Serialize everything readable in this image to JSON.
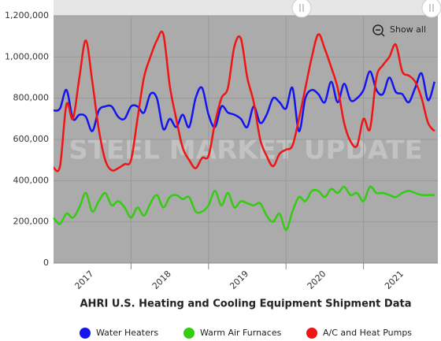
{
  "chart_data": {
    "type": "line",
    "title": "AHRI U.S. Heating and Cooling Equipment Shipment Data",
    "watermark": "STEEL MARKET UPDATE",
    "show_all": "Show all",
    "categories": [
      null,
      null,
      null,
      null,
      null,
      null,
      "2017",
      null,
      null,
      null,
      null,
      null,
      null,
      null,
      null,
      null,
      null,
      null,
      "2018",
      null,
      null,
      null,
      null,
      null,
      null,
      null,
      null,
      null,
      null,
      null,
      "2019",
      null,
      null,
      null,
      null,
      null,
      null,
      null,
      null,
      null,
      null,
      null,
      "2020",
      null,
      null,
      null,
      null,
      null,
      null,
      null,
      null,
      null,
      null,
      null,
      "2021",
      null,
      null,
      null,
      null,
      null
    ],
    "ylim": [
      0,
      1200000
    ],
    "yticks": [
      0,
      {
        "value": 200000,
        "label": "200,000"
      },
      {
        "value": 400000,
        "label": "400,000"
      },
      {
        "value": 600000,
        "label": "600,000"
      },
      {
        "value": 800000,
        "label": "800,000"
      },
      {
        "value": 1000000,
        "label": "1,000,000"
      },
      {
        "value": 1200000,
        "label": "1,200,000"
      }
    ],
    "grid": true,
    "legend": "bottom",
    "series": [
      {
        "name": "Water Heaters",
        "color": "#1414f0",
        "values": [
          740000,
          750000,
          840000,
          700000,
          720000,
          710000,
          640000,
          740000,
          760000,
          760000,
          710000,
          700000,
          760000,
          760000,
          730000,
          820000,
          800000,
          650000,
          700000,
          660000,
          720000,
          660000,
          800000,
          850000,
          720000,
          660000,
          760000,
          730000,
          720000,
          700000,
          660000,
          760000,
          680000,
          720000,
          800000,
          780000,
          750000,
          850000,
          640000,
          800000,
          840000,
          820000,
          780000,
          880000,
          780000,
          870000,
          790000,
          800000,
          840000,
          930000,
          840000,
          820000,
          900000,
          830000,
          820000,
          780000,
          850000,
          920000,
          790000,
          880000
        ]
      },
      {
        "name": "Warm Air Furnaces",
        "color": "#33cc11",
        "values": [
          220000,
          190000,
          240000,
          220000,
          270000,
          340000,
          250000,
          300000,
          340000,
          280000,
          300000,
          270000,
          220000,
          270000,
          230000,
          290000,
          330000,
          270000,
          320000,
          330000,
          310000,
          320000,
          250000,
          250000,
          280000,
          350000,
          280000,
          340000,
          270000,
          300000,
          290000,
          280000,
          290000,
          230000,
          200000,
          240000,
          160000,
          250000,
          320000,
          300000,
          350000,
          350000,
          320000,
          360000,
          340000,
          370000,
          330000,
          340000,
          300000,
          370000,
          340000,
          340000,
          330000,
          320000,
          340000,
          350000,
          340000,
          330000,
          330000,
          330000
        ]
      },
      {
        "name": "A/C and Heat Pumps",
        "color": "#f01414",
        "values": [
          463000,
          470000,
          770000,
          700000,
          900000,
          1080000,
          880000,
          650000,
          500000,
          450000,
          460000,
          480000,
          500000,
          700000,
          900000,
          1000000,
          1080000,
          1110000,
          860000,
          700000,
          560000,
          500000,
          460000,
          510000,
          520000,
          680000,
          800000,
          850000,
          1050000,
          1090000,
          900000,
          780000,
          600000,
          520000,
          470000,
          530000,
          550000,
          570000,
          700000,
          850000,
          1000000,
          1110000,
          1040000,
          950000,
          850000,
          680000,
          590000,
          570000,
          700000,
          650000,
          900000,
          960000,
          1000000,
          1060000,
          930000,
          910000,
          880000,
          800000,
          680000,
          640000
        ]
      }
    ]
  }
}
